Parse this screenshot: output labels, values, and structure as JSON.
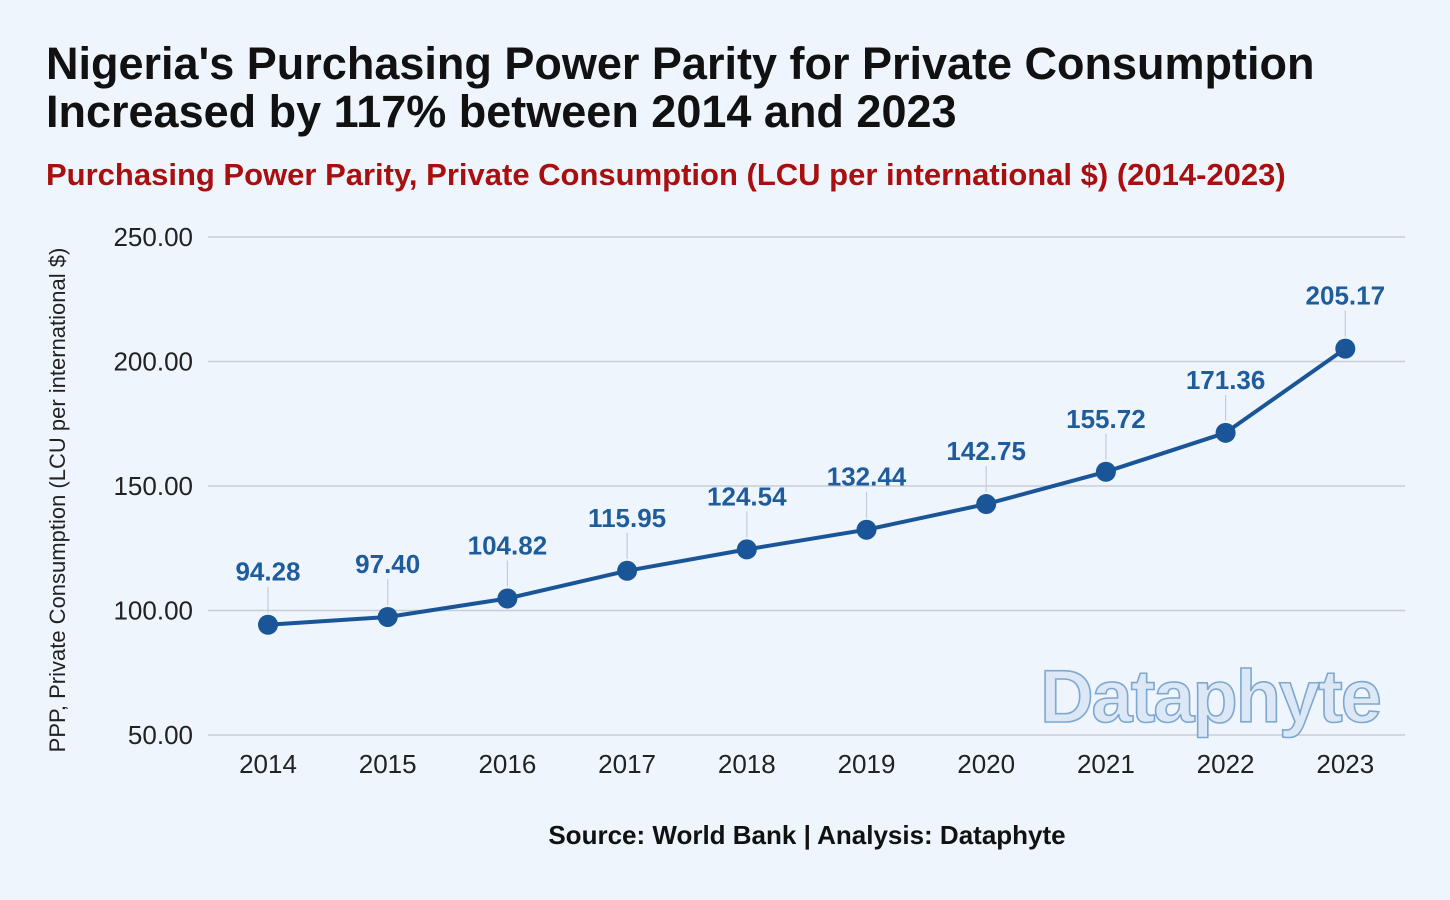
{
  "header": {
    "title": "Nigeria's Purchasing Power Parity for Private Consumption Increased by 117% between 2014 and 2023",
    "subtitle": "Purchasing Power Parity, Private Consumption (LCU per international $) (2014-2023)"
  },
  "footer": {
    "source": "Source: World Bank | Analysis: Dataphyte",
    "watermark": "Dataphyte"
  },
  "colors": {
    "line": "#1a5598",
    "label": "#1f5c9c",
    "subtitle": "#a80f0f",
    "grid": "#c9ced4",
    "background": "#eef5fd"
  },
  "chart_data": {
    "type": "line",
    "title": "Nigeria's Purchasing Power Parity for Private Consumption Increased by 117% between 2014 and 2023",
    "subtitle": "Purchasing Power Parity, Private Consumption (LCU per international $) (2014-2023)",
    "xlabel": "",
    "ylabel": "PPP, Private Consumption (LCU per international $)",
    "categories": [
      "2014",
      "2015",
      "2016",
      "2017",
      "2018",
      "2019",
      "2020",
      "2021",
      "2022",
      "2023"
    ],
    "values": [
      94.28,
      97.4,
      104.82,
      115.95,
      124.54,
      132.44,
      142.75,
      155.72,
      171.36,
      205.17
    ],
    "data_labels": [
      "94.28",
      "97.40",
      "104.82",
      "115.95",
      "124.54",
      "132.44",
      "142.75",
      "155.72",
      "171.36",
      "205.17"
    ],
    "ylim": [
      50,
      250
    ],
    "yticks": [
      50,
      100,
      150,
      200,
      250
    ],
    "ytick_labels": [
      "50.00",
      "100.00",
      "150.00",
      "200.00",
      "250.00"
    ],
    "grid": true,
    "legend": "none"
  }
}
